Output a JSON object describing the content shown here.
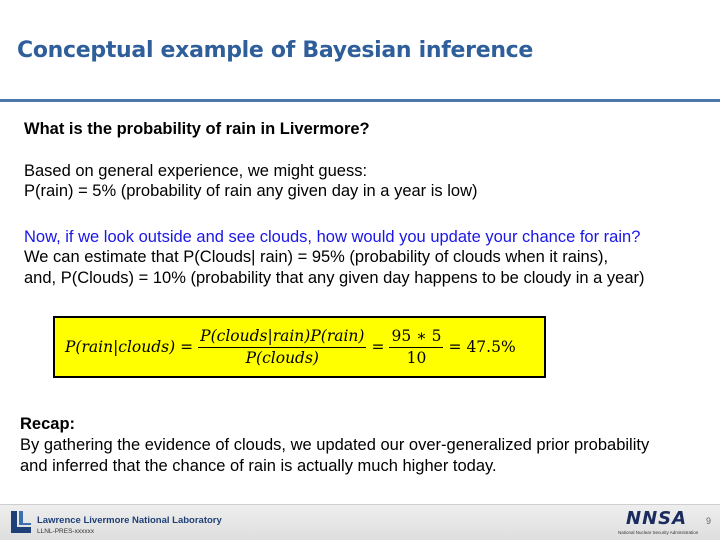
{
  "slide": {
    "title": "Conceptual example of Bayesian inference",
    "question": "What is the probability of rain in Livermore?",
    "guess_intro": "Based on general experience, we might guess:",
    "prior_line": "P(rain) = 5% (probability of rain any given day in a year is low)",
    "update_question": "Now, if we look outside and see clouds, how would you update your chance for rain?",
    "likelihood_line": "We can estimate that P(Clouds| rain) = 95% (probability of clouds when it rains),",
    "evidence_line": "and, P(Clouds) = 10% (probability that any given day happens to be cloudy in a year)",
    "formula": {
      "lhs": "P(rain|clouds)",
      "numerator": "P(clouds|rain)P(rain)",
      "denominator": "P(clouds)",
      "num_numerator": "95 ∗ 5",
      "num_denominator": "10",
      "result": "47.5%"
    },
    "recap": {
      "heading": "Recap:",
      "line1": "By gathering the evidence of clouds, we updated our over-generalized prior probability",
      "line2": "and inferred that the chance of rain is actually much higher today."
    }
  },
  "footer": {
    "lab_name": "Lawrence Livermore National Laboratory",
    "doc_code": "LLNL-PRES-xxxxxx",
    "nnsa_logo": "NNSA",
    "nnsa_subtitle": "National Nuclear Security Administration",
    "page_number": "9"
  },
  "colors": {
    "title": "#2f5f9a",
    "rule": "#4e78a9",
    "question_blue": "#1a16e6",
    "formula_bg": "#ffff00"
  }
}
